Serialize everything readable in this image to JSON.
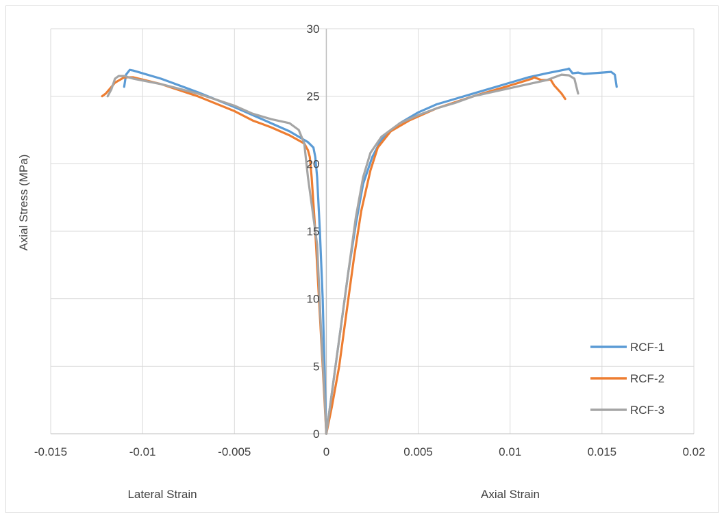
{
  "chart_data": {
    "type": "line",
    "title": "",
    "ylabel": "Axial Stress (MPa)",
    "xlabel_left": "Lateral Strain",
    "xlabel_right": "Axial Strain",
    "xlim": [
      -0.015,
      0.02
    ],
    "ylim": [
      0,
      30
    ],
    "x_ticks": [
      -0.015,
      -0.01,
      -0.005,
      0,
      0.005,
      0.01,
      0.015,
      0.02
    ],
    "x_tick_labels": [
      "-0.015",
      "-0.01",
      "-0.005",
      "0",
      "0.005",
      "0.01",
      "0.015",
      "0.02"
    ],
    "y_ticks": [
      0,
      5,
      10,
      15,
      20,
      25,
      30
    ],
    "y_tick_labels": [
      "0",
      "5",
      "10",
      "15",
      "20",
      "25",
      "30"
    ],
    "grid": true,
    "legend_position": "bottom-right",
    "series": [
      {
        "name": "RCF-1",
        "color": "#5B9BD5",
        "lateral": [
          [
            0,
            0
          ],
          [
            -0.0001,
            5
          ],
          [
            -0.0002,
            10
          ],
          [
            -0.00035,
            15
          ],
          [
            -0.0005,
            19
          ],
          [
            -0.0006,
            20.5
          ],
          [
            -0.0007,
            21.2
          ],
          [
            -0.001,
            21.6
          ],
          [
            -0.0015,
            22
          ],
          [
            -0.002,
            22.4
          ],
          [
            -0.003,
            23
          ],
          [
            -0.005,
            24.2
          ],
          [
            -0.007,
            25.3
          ],
          [
            -0.009,
            26.3
          ],
          [
            -0.0105,
            26.9
          ],
          [
            -0.0107,
            26.95
          ],
          [
            -0.0109,
            26.6
          ],
          [
            -0.011,
            25.7
          ]
        ],
        "axial": [
          [
            0,
            0
          ],
          [
            0.0002,
            2
          ],
          [
            0.0005,
            5
          ],
          [
            0.0008,
            8
          ],
          [
            0.0012,
            12
          ],
          [
            0.0016,
            15.5
          ],
          [
            0.002,
            18.5
          ],
          [
            0.0025,
            20.5
          ],
          [
            0.003,
            21.8
          ],
          [
            0.004,
            23
          ],
          [
            0.005,
            23.8
          ],
          [
            0.006,
            24.4
          ],
          [
            0.007,
            24.8
          ],
          [
            0.008,
            25.2
          ],
          [
            0.009,
            25.6
          ],
          [
            0.01,
            26
          ],
          [
            0.011,
            26.4
          ],
          [
            0.012,
            26.7
          ],
          [
            0.0131,
            27
          ],
          [
            0.0132,
            27.05
          ],
          [
            0.0134,
            26.7
          ],
          [
            0.0137,
            26.75
          ],
          [
            0.014,
            26.65
          ],
          [
            0.0145,
            26.7
          ],
          [
            0.015,
            26.75
          ],
          [
            0.0155,
            26.8
          ],
          [
            0.0157,
            26.6
          ],
          [
            0.0158,
            25.7
          ]
        ]
      },
      {
        "name": "RCF-2",
        "color": "#ED7D31",
        "lateral": [
          [
            0,
            0
          ],
          [
            -0.0002,
            5
          ],
          [
            -0.0004,
            10
          ],
          [
            -0.0006,
            15
          ],
          [
            -0.0008,
            19
          ],
          [
            -0.0009,
            20.5
          ],
          [
            -0.001,
            21
          ],
          [
            -0.0012,
            21.5
          ],
          [
            -0.002,
            22.1
          ],
          [
            -0.003,
            22.7
          ],
          [
            -0.004,
            23.2
          ],
          [
            -0.005,
            23.9
          ],
          [
            -0.007,
            25
          ],
          [
            -0.009,
            25.9
          ],
          [
            -0.0105,
            26.4
          ],
          [
            -0.011,
            26.4
          ],
          [
            -0.0115,
            26
          ],
          [
            -0.012,
            25.2
          ],
          [
            -0.0122,
            25
          ]
        ],
        "axial": [
          [
            0,
            0
          ],
          [
            0.0003,
            2
          ],
          [
            0.0007,
            5
          ],
          [
            0.0011,
            9
          ],
          [
            0.0015,
            13
          ],
          [
            0.0019,
            16.5
          ],
          [
            0.0024,
            19.5
          ],
          [
            0.0028,
            21.2
          ],
          [
            0.0035,
            22.4
          ],
          [
            0.0045,
            23.2
          ],
          [
            0.006,
            24.1
          ],
          [
            0.008,
            25
          ],
          [
            0.01,
            25.8
          ],
          [
            0.0112,
            26.3
          ],
          [
            0.0113,
            26.4
          ],
          [
            0.0117,
            26.2
          ],
          [
            0.012,
            26.2
          ],
          [
            0.0122,
            26.25
          ],
          [
            0.0124,
            25.8
          ],
          [
            0.0126,
            25.5
          ],
          [
            0.0128,
            25.2
          ],
          [
            0.013,
            24.8
          ]
        ]
      },
      {
        "name": "RCF-3",
        "color": "#A5A5A5",
        "lateral": [
          [
            0,
            0
          ],
          [
            -0.0001,
            3
          ],
          [
            -0.0003,
            8
          ],
          [
            -0.0005,
            14
          ],
          [
            -0.0008,
            17
          ],
          [
            -0.001,
            19
          ],
          [
            -0.0012,
            21.5
          ],
          [
            -0.0015,
            22.5
          ],
          [
            -0.002,
            23
          ],
          [
            -0.003,
            23.3
          ],
          [
            -0.004,
            23.7
          ],
          [
            -0.005,
            24.3
          ],
          [
            -0.007,
            25.2
          ],
          [
            -0.009,
            25.9
          ],
          [
            -0.0105,
            26.3
          ],
          [
            -0.011,
            26.5
          ],
          [
            -0.0113,
            26.5
          ],
          [
            -0.0115,
            26.3
          ],
          [
            -0.0117,
            25.5
          ],
          [
            -0.0119,
            25
          ]
        ],
        "axial": [
          [
            0,
            0
          ],
          [
            0.0002,
            2
          ],
          [
            0.0005,
            5
          ],
          [
            0.0009,
            9
          ],
          [
            0.0013,
            13
          ],
          [
            0.0016,
            16
          ],
          [
            0.002,
            19
          ],
          [
            0.0024,
            20.8
          ],
          [
            0.003,
            22
          ],
          [
            0.004,
            23
          ],
          [
            0.005,
            23.6
          ],
          [
            0.006,
            24.1
          ],
          [
            0.007,
            24.5
          ],
          [
            0.008,
            25
          ],
          [
            0.009,
            25.3
          ],
          [
            0.01,
            25.6
          ],
          [
            0.011,
            25.9
          ],
          [
            0.012,
            26.2
          ],
          [
            0.0128,
            26.6
          ],
          [
            0.0132,
            26.55
          ],
          [
            0.0135,
            26.3
          ],
          [
            0.0137,
            25.2
          ]
        ]
      }
    ]
  }
}
